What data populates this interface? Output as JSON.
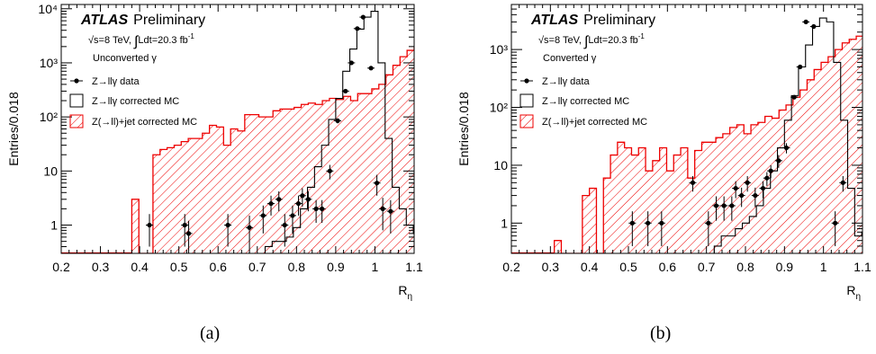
{
  "labels": {
    "atlas": "ATLAS",
    "preliminary": "Preliminary",
    "ylabel": "Entries/0.018",
    "xlabel_main": "R",
    "xlabel_sub": "η"
  },
  "panels": [
    {
      "caption": "(a)",
      "conv": "Unconverted γ",
      "sqrt_text": "s=8 TeV, ",
      "lumi_text": "Ldt=20.3 fb",
      "lumi_sup": "-1",
      "legend": {
        "data": "Z→llγ data",
        "mc": "Z→llγ corrected MC",
        "bkg": "Z(→ll)+jet corrected MC"
      }
    },
    {
      "caption": "(b)",
      "conv": "Converted γ",
      "sqrt_text": "s=8 TeV, ",
      "lumi_text": "Ldt=20.3 fb",
      "lumi_sup": "-1",
      "legend": {
        "data": "Z→llγ data",
        "mc": "Z→llγ corrected MC",
        "bkg": "Z(→ll)+jet corrected MC"
      }
    }
  ],
  "chart_data": [
    {
      "type": "bar",
      "xlim": [
        0.2,
        1.1
      ],
      "ylim": [
        0.3,
        12000
      ],
      "log_y": true,
      "bin_width": 0.018,
      "xticks": [
        0.2,
        0.3,
        0.4,
        0.5,
        0.6,
        0.7,
        0.8,
        0.9,
        1.0,
        1.1
      ],
      "xtick_labels": [
        "0.2",
        "0.3",
        "0.4",
        "0.5",
        "0.6",
        "0.7",
        "0.8",
        "0.9",
        "1",
        "1.1"
      ],
      "yticks": [
        1,
        10,
        100,
        1000,
        10000
      ],
      "ytick_labels": [
        "1",
        "10",
        "10²",
        "10³",
        "10⁴"
      ],
      "series": [
        {
          "name": "Z(→ll)+jet corrected MC",
          "kind": "hatched-hist",
          "x_start": 0.38,
          "values": [
            3,
            0.3,
            0.3,
            20,
            25,
            27,
            30,
            35,
            40,
            40,
            50,
            70,
            65,
            30,
            60,
            55,
            110,
            110,
            100,
            100,
            130,
            140,
            140,
            150,
            170,
            180,
            170,
            200,
            220,
            210,
            240,
            200,
            270,
            270,
            330,
            400,
            600,
            900,
            1300,
            1700,
            1900,
            2200,
            2500,
            3500,
            4000,
            1800,
            1000,
            1,
            0.3,
            0.3,
            0.3,
            0.3,
            0.3,
            0.3,
            0.3,
            0.3,
            0.3,
            0.3,
            0.3,
            0.3
          ]
        },
        {
          "name": "Z→llγ corrected MC",
          "kind": "open-hist",
          "x_start": 0.72,
          "values": [
            0.4,
            0.5,
            0.5,
            0.6,
            0.9,
            2,
            5,
            12,
            30,
            90,
            220,
            700,
            1800,
            4200,
            7000,
            9000,
            1000,
            40,
            5,
            2,
            1,
            0.7
          ]
        },
        {
          "name": "Z→llγ data",
          "kind": "points",
          "x": [
            0.425,
            0.515,
            0.525,
            0.625,
            0.68,
            0.715,
            0.735,
            0.755,
            0.77,
            0.79,
            0.805,
            0.815,
            0.83,
            0.85,
            0.865,
            0.885,
            0.905,
            0.925,
            0.94,
            0.955,
            0.97,
            0.99,
            1.005,
            1.02,
            1.04
          ],
          "y": [
            1,
            1,
            0.7,
            1,
            0.9,
            1.5,
            2.5,
            3,
            1,
            1.5,
            2.5,
            3.5,
            3,
            2,
            2,
            10,
            85,
            300,
            1000,
            4300,
            7000,
            800,
            6,
            2,
            1.8
          ],
          "yerr": [
            0.6,
            0.6,
            0.5,
            0.6,
            0.6,
            0.8,
            1,
            1.2,
            0.6,
            0.8,
            1,
            1.3,
            1.2,
            0.9,
            0.9,
            3,
            9,
            17,
            32,
            65,
            85,
            28,
            2.5,
            1.2,
            1.1
          ]
        }
      ]
    },
    {
      "type": "bar",
      "xlim": [
        0.2,
        1.1
      ],
      "ylim": [
        0.3,
        6000
      ],
      "log_y": true,
      "bin_width": 0.018,
      "xticks": [
        0.2,
        0.3,
        0.4,
        0.5,
        0.6,
        0.7,
        0.8,
        0.9,
        1.0,
        1.1
      ],
      "xtick_labels": [
        "0.2",
        "0.3",
        "0.4",
        "0.5",
        "0.6",
        "0.7",
        "0.8",
        "0.9",
        "1",
        "1.1"
      ],
      "yticks": [
        1,
        10,
        100,
        1000
      ],
      "ytick_labels": [
        "1",
        "10",
        "10²",
        "10³"
      ],
      "series": [
        {
          "name": "Z(→ll)+jet corrected MC",
          "kind": "hatched-hist",
          "x_start": 0.31,
          "values": [
            0.5,
            0.3,
            0.3,
            0.3,
            3,
            4,
            0.3,
            6,
            15,
            25,
            20,
            15,
            20,
            8,
            12,
            20,
            8,
            15,
            20,
            6,
            18,
            25,
            25,
            30,
            35,
            45,
            50,
            35,
            50,
            55,
            70,
            65,
            90,
            110,
            150,
            200,
            300,
            450,
            600,
            750,
            1000,
            1300,
            1500,
            1700,
            1200,
            700,
            150,
            15,
            0.3,
            0.3,
            0.3,
            0.3,
            0.3,
            0.3,
            0.3,
            0.3,
            0.3,
            0.3,
            0.3,
            0.3,
            0.3,
            0.3,
            0.3,
            0.3,
            0.3,
            0.3,
            0.3
          ]
        },
        {
          "name": "Z→llγ corrected MC",
          "kind": "open-hist",
          "x_start": 0.72,
          "values": [
            0.4,
            0.6,
            0.6,
            0.8,
            1,
            1.3,
            2,
            4,
            8,
            20,
            60,
            160,
            500,
            1200,
            2500,
            3500,
            3000,
            600,
            60,
            4,
            0.6,
            0.7
          ]
        },
        {
          "name": "Z→llγ data",
          "kind": "points",
          "x": [
            0.51,
            0.55,
            0.585,
            0.665,
            0.705,
            0.725,
            0.745,
            0.765,
            0.775,
            0.79,
            0.805,
            0.825,
            0.845,
            0.855,
            0.865,
            0.885,
            0.905,
            0.925,
            0.94,
            0.955,
            0.975,
            1.03,
            1.05
          ],
          "y": [
            1,
            1,
            1,
            5,
            1,
            2,
            2,
            2,
            4,
            3,
            5,
            3,
            4,
            6,
            8,
            12,
            20,
            150,
            500,
            3000,
            2500,
            1,
            5
          ],
          "yerr": [
            0.6,
            0.6,
            0.6,
            1.5,
            0.6,
            0.9,
            0.9,
            0.9,
            1.3,
            1.1,
            1.5,
            1.1,
            1.3,
            1.6,
            2,
            3,
            4,
            12,
            22,
            55,
            50,
            0.6,
            1.5
          ]
        }
      ]
    }
  ]
}
